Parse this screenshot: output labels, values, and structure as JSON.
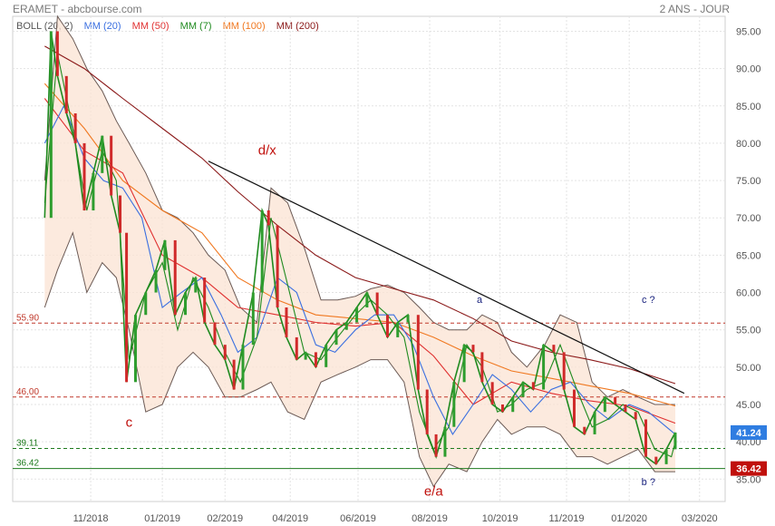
{
  "header": {
    "title": "ERAMET - abcbourse.com",
    "period": "2 ANS - JOUR"
  },
  "legend": [
    {
      "label": "BOLL (20, 2)",
      "color": "#555555"
    },
    {
      "label": "MM (20)",
      "color": "#3a6fe0"
    },
    {
      "label": "MM (50)",
      "color": "#e03030"
    },
    {
      "label": "MM (7)",
      "color": "#1f8a1f"
    },
    {
      "label": "MM (100)",
      "color": "#f07820"
    },
    {
      "label": "MM (200)",
      "color": "#8b1a1a"
    }
  ],
  "chart_data": {
    "type": "line",
    "title": "",
    "ylim": [
      32,
      97
    ],
    "y_ticks": [
      "95.00",
      "90.00",
      "85.00",
      "80.00",
      "75.00",
      "70.00",
      "65.00",
      "60.00",
      "55.00",
      "50.00",
      "45.00",
      "40.00",
      "35.00"
    ],
    "x_ticks": [
      "11/2018",
      "01/2019",
      "02/2019",
      "04/2019",
      "06/2019",
      "08/2019",
      "10/2019",
      "11/2019",
      "01/2020",
      "03/2020"
    ],
    "levels": [
      {
        "value": 55.9,
        "label": "55.90",
        "style": "dashed",
        "color": "#c0392b"
      },
      {
        "value": 46.0,
        "label": "46.00",
        "style": "dashed",
        "color": "#c0392b"
      },
      {
        "value": 39.11,
        "label": "39.11",
        "style": "dashed",
        "color": "#1e7a1e"
      },
      {
        "value": 36.42,
        "label": "36.42",
        "style": "solid",
        "color": "#1e7a1e"
      }
    ],
    "last_prices": [
      {
        "value": 41.24,
        "label": "41.24",
        "color": "#2f7de1"
      },
      {
        "value": 36.42,
        "label": "36.42",
        "color": "#c0100c"
      }
    ],
    "trendline": [
      {
        "x": "2019-02-15",
        "y": 77.6
      },
      {
        "x": "2020-02-22",
        "y": 46.5
      }
    ],
    "annotations": [
      {
        "text": "d/x",
        "x": "2019-04-02",
        "y": 78.5,
        "color": "#c0100c"
      },
      {
        "text": "c",
        "x": "2018-12-15",
        "y": 42.0,
        "color": "#c0100c"
      },
      {
        "text": "e/a",
        "x": "2019-08-10",
        "y": 32.8,
        "color": "#c0100c"
      },
      {
        "text": "a",
        "x": "2019-09-15",
        "y": 58.6,
        "color": "#1a237e"
      },
      {
        "text": "c ?",
        "x": "2020-01-25",
        "y": 58.6,
        "color": "#1a237e"
      },
      {
        "text": "b ?",
        "x": "2020-01-25",
        "y": 34.2,
        "color": "#1a237e"
      }
    ],
    "series": [
      {
        "name": "MM (200)",
        "color": "#8b1a1a",
        "x": [
          "2018-10-10",
          "2018-11-10",
          "2018-12-10",
          "2019-01-10",
          "2019-02-10",
          "2019-03-10",
          "2019-04-10",
          "2019-05-10",
          "2019-06-10",
          "2019-07-10",
          "2019-08-10",
          "2019-09-10",
          "2019-10-10",
          "2019-11-10",
          "2019-12-10",
          "2020-01-10",
          "2020-02-15"
        ],
        "y": [
          93,
          90,
          86,
          82,
          78,
          73.5,
          69,
          65,
          62,
          60.5,
          59,
          56.5,
          53.5,
          52,
          51,
          49.8,
          47.8
        ]
      },
      {
        "name": "MM (100)",
        "color": "#f07820",
        "x": [
          "2018-10-10",
          "2018-11-10",
          "2018-12-10",
          "2019-01-10",
          "2019-02-10",
          "2019-03-10",
          "2019-04-10",
          "2019-05-10",
          "2019-06-10",
          "2019-07-10",
          "2019-08-10",
          "2019-09-10",
          "2019-10-10",
          "2019-11-10",
          "2019-12-10",
          "2020-01-10",
          "2020-02-15"
        ],
        "y": [
          88,
          82,
          75,
          71,
          68,
          62,
          59,
          57,
          56.5,
          56,
          54,
          51.5,
          49.5,
          48.5,
          47.5,
          46.5,
          44.8
        ]
      },
      {
        "name": "MM (50)",
        "color": "#e03030",
        "x": [
          "2018-10-10",
          "2018-11-10",
          "2018-12-10",
          "2019-01-10",
          "2019-02-10",
          "2019-03-10",
          "2019-04-10",
          "2019-05-10",
          "2019-06-10",
          "2019-07-10",
          "2019-08-10",
          "2019-09-10",
          "2019-10-10",
          "2019-11-10",
          "2019-12-10",
          "2020-01-10",
          "2020-02-15"
        ],
        "y": [
          86,
          79,
          76,
          65,
          62,
          58,
          57,
          56,
          55.5,
          56,
          51.5,
          45,
          48,
          46.5,
          45.5,
          44.8,
          42.5
        ]
      },
      {
        "name": "MM (20)",
        "color": "#3a6fe0",
        "x": [
          "2018-10-10",
          "2018-10-25",
          "2018-11-10",
          "2018-11-25",
          "2018-12-10",
          "2018-12-25",
          "2019-01-10",
          "2019-01-25",
          "2019-02-10",
          "2019-02-25",
          "2019-03-10",
          "2019-03-25",
          "2019-04-10",
          "2019-04-25",
          "2019-05-10",
          "2019-05-25",
          "2019-06-10",
          "2019-06-25",
          "2019-07-10",
          "2019-07-25",
          "2019-08-10",
          "2019-08-25",
          "2019-09-10",
          "2019-09-25",
          "2019-10-10",
          "2019-10-25",
          "2019-11-10",
          "2019-11-25",
          "2019-12-10",
          "2019-12-25",
          "2020-01-10",
          "2020-01-25",
          "2020-02-15"
        ],
        "y": [
          80,
          85,
          78,
          75,
          74,
          70,
          58,
          60,
          62,
          57,
          52,
          54,
          62,
          60,
          53,
          52,
          55,
          57,
          57,
          53,
          46,
          41,
          45,
          49,
          47,
          44,
          47,
          48,
          45,
          43,
          45,
          44,
          41
        ]
      },
      {
        "name": "MM (7)",
        "color": "#1f8a1f",
        "x": [
          "2018-10-10",
          "2018-10-20",
          "2018-11-01",
          "2018-11-12",
          "2018-11-24",
          "2018-12-05",
          "2018-12-15",
          "2018-12-28",
          "2019-01-10",
          "2019-01-22",
          "2019-02-03",
          "2019-02-15",
          "2019-02-28",
          "2019-03-12",
          "2019-03-25",
          "2019-04-05",
          "2019-04-18",
          "2019-05-01",
          "2019-05-14",
          "2019-05-27",
          "2019-06-10",
          "2019-06-22",
          "2019-07-05",
          "2019-07-18",
          "2019-07-30",
          "2019-08-10",
          "2019-08-22",
          "2019-09-05",
          "2019-09-17",
          "2019-09-29",
          "2019-10-10",
          "2019-10-22",
          "2019-11-05",
          "2019-11-17",
          "2019-11-30",
          "2019-12-12",
          "2019-12-24",
          "2020-01-05",
          "2020-01-17",
          "2020-01-30",
          "2020-02-12",
          "2020-02-15"
        ],
        "y": [
          72,
          92,
          82,
          71,
          79,
          75,
          51,
          60,
          64,
          55,
          62,
          58,
          52,
          48,
          54,
          70,
          61,
          52,
          51,
          54,
          57,
          59,
          57,
          54,
          44,
          39,
          42,
          53,
          50,
          44,
          45,
          47,
          48,
          53,
          47,
          42,
          43,
          45,
          44,
          39,
          38,
          40
        ]
      },
      {
        "name": "Price",
        "color": "#1f8a1f",
        "x": [
          "2018-10-10",
          "2018-10-15",
          "2018-10-20",
          "2018-10-27",
          "2018-11-03",
          "2018-11-10",
          "2018-11-17",
          "2018-11-24",
          "2018-12-01",
          "2018-12-08",
          "2018-12-13",
          "2018-12-20",
          "2018-12-28",
          "2019-01-05",
          "2019-01-12",
          "2019-01-20",
          "2019-01-28",
          "2019-02-05",
          "2019-02-12",
          "2019-02-20",
          "2019-02-28",
          "2019-03-07",
          "2019-03-14",
          "2019-03-22",
          "2019-03-29",
          "2019-04-03",
          "2019-04-10",
          "2019-04-17",
          "2019-04-25",
          "2019-05-02",
          "2019-05-10",
          "2019-05-18",
          "2019-05-26",
          "2019-06-03",
          "2019-06-11",
          "2019-06-19",
          "2019-06-27",
          "2019-07-05",
          "2019-07-13",
          "2019-07-21",
          "2019-07-29",
          "2019-08-05",
          "2019-08-12",
          "2019-08-19",
          "2019-08-26",
          "2019-09-03",
          "2019-09-10",
          "2019-09-17",
          "2019-09-25",
          "2019-10-03",
          "2019-10-11",
          "2019-10-19",
          "2019-10-27",
          "2019-11-04",
          "2019-11-12",
          "2019-11-20",
          "2019-11-28",
          "2019-12-06",
          "2019-12-14",
          "2019-12-22",
          "2019-12-30",
          "2020-01-07",
          "2020-01-15",
          "2020-01-23",
          "2020-01-31",
          "2020-02-08",
          "2020-02-15"
        ],
        "y": [
          70,
          95,
          89,
          84,
          80,
          71,
          76,
          81,
          73,
          68,
          48,
          57,
          60,
          63,
          67,
          57,
          60,
          62,
          56,
          53,
          51,
          47,
          53,
          60,
          71,
          69,
          58,
          54,
          51,
          52,
          50,
          53,
          55,
          56,
          58,
          60,
          57,
          54,
          56,
          57,
          47,
          41,
          38,
          42,
          48,
          53,
          52,
          48,
          45,
          44,
          46,
          48,
          47,
          53,
          52,
          47,
          42,
          41,
          44,
          46,
          45,
          44,
          43,
          38,
          37,
          39,
          41.24
        ]
      }
    ],
    "bollinger": {
      "x": [
        "2018-10-10",
        "2018-10-20",
        "2018-11-01",
        "2018-11-12",
        "2018-11-24",
        "2018-12-05",
        "2018-12-15",
        "2018-12-28",
        "2019-01-10",
        "2019-01-22",
        "2019-02-03",
        "2019-02-15",
        "2019-02-28",
        "2019-03-12",
        "2019-03-25",
        "2019-04-05",
        "2019-04-18",
        "2019-05-01",
        "2019-05-14",
        "2019-05-27",
        "2019-06-10",
        "2019-06-22",
        "2019-07-05",
        "2019-07-18",
        "2019-07-30",
        "2019-08-10",
        "2019-08-22",
        "2019-09-05",
        "2019-09-17",
        "2019-09-29",
        "2019-10-10",
        "2019-10-22",
        "2019-11-05",
        "2019-11-17",
        "2019-11-30",
        "2019-12-12",
        "2019-12-24",
        "2020-01-05",
        "2020-01-17",
        "2020-01-30",
        "2020-02-12",
        "2020-02-15"
      ],
      "upper": [
        75,
        97,
        94,
        90,
        87,
        83,
        80,
        76,
        71,
        70,
        68,
        65,
        63,
        58,
        56,
        74,
        72,
        66,
        59,
        59,
        59.5,
        60.5,
        61,
        60,
        58,
        56,
        55,
        55,
        57,
        56,
        52,
        50,
        53,
        57,
        56,
        48,
        46,
        47,
        46,
        45,
        45,
        45
      ],
      "lower": [
        58,
        63,
        68,
        60,
        64,
        62,
        55,
        44,
        45,
        50,
        52,
        50,
        46,
        46,
        47,
        48,
        44,
        43,
        48,
        49,
        50,
        51,
        51,
        48,
        38,
        34,
        37,
        36,
        40,
        43,
        41,
        42,
        42,
        41,
        38,
        38,
        37,
        38,
        39,
        36,
        36,
        36
      ]
    }
  }
}
